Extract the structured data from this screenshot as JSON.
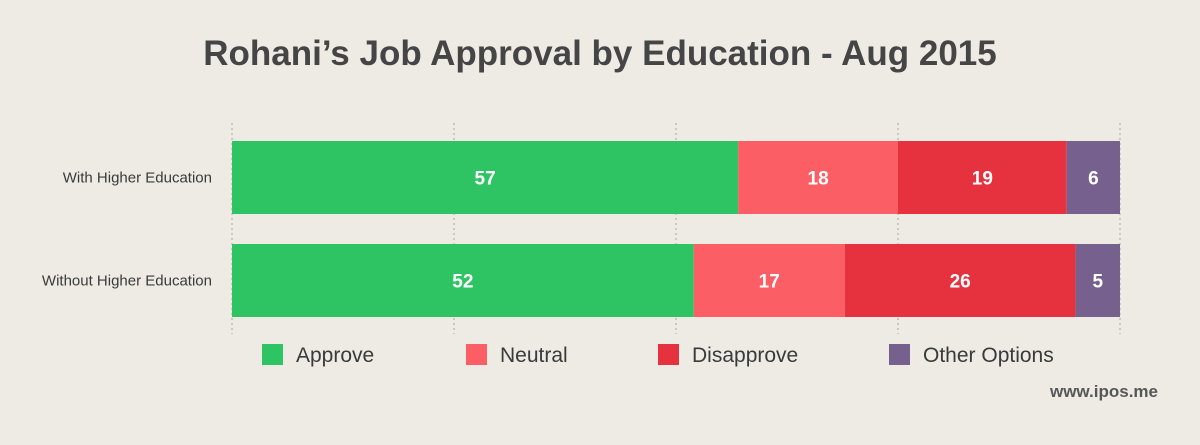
{
  "chart_data": {
    "type": "bar",
    "orientation": "horizontal",
    "stacked": true,
    "title": "Rohani’s Job Approval by Education - Aug 2015",
    "categories": [
      "With Higher Education",
      "Without Higher Education"
    ],
    "series": [
      {
        "name": "Approve",
        "color": "#2fc463",
        "values": [
          57,
          52
        ]
      },
      {
        "name": "Neutral",
        "color": "#fb5f65",
        "values": [
          18,
          17
        ]
      },
      {
        "name": "Disapprove",
        "color": "#e6313f",
        "values": [
          19,
          26
        ]
      },
      {
        "name": "Other Options",
        "color": "#76618e",
        "values": [
          6,
          5
        ]
      }
    ],
    "xlim": [
      0,
      100
    ],
    "grid": true,
    "legend": "bottom"
  },
  "watermark": "www.ipos.me"
}
